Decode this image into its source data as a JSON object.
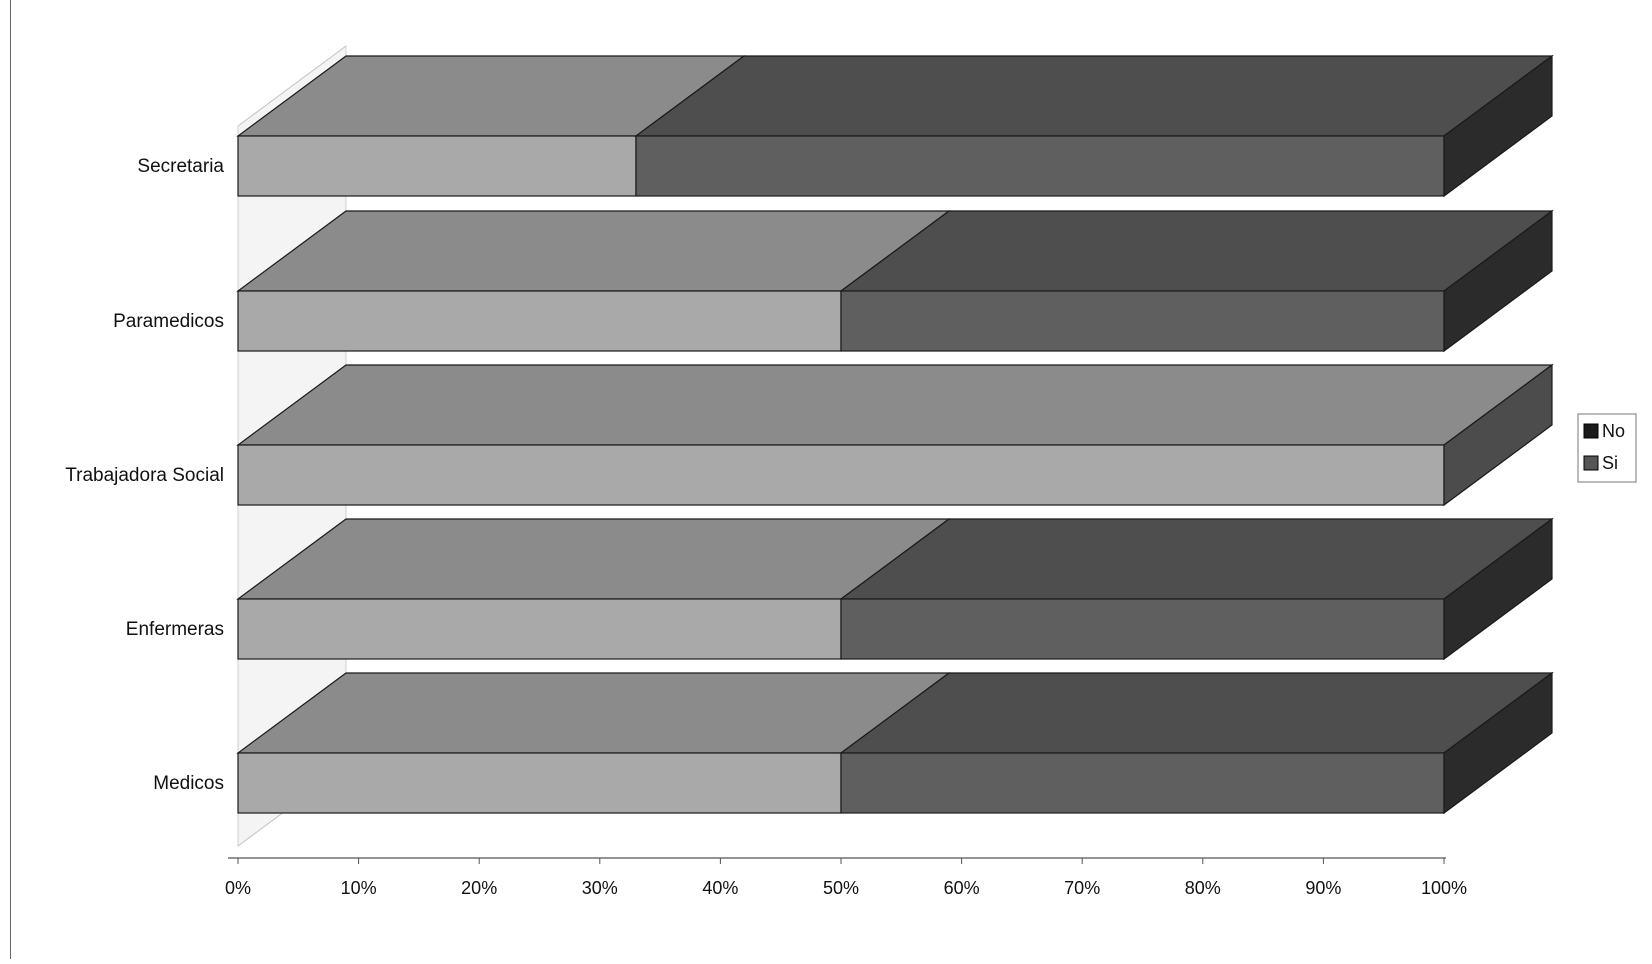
{
  "chart_data": {
    "type": "bar",
    "orientation": "horizontal",
    "stacking": "percent",
    "style": "3d",
    "categories": [
      "Medicos",
      "Enfermeras",
      "Trabajadora Social",
      "Paramedicos",
      "Secretaria"
    ],
    "series": [
      {
        "name": "Si",
        "values": [
          50,
          50,
          100,
          50,
          33
        ],
        "color": "#a9a9a9"
      },
      {
        "name": "No",
        "values": [
          50,
          50,
          0,
          50,
          67
        ],
        "color": "#5f5f5f"
      }
    ],
    "xlim": [
      0,
      100
    ],
    "x_ticks": [
      "0%",
      "10%",
      "20%",
      "30%",
      "40%",
      "50%",
      "60%",
      "70%",
      "80%",
      "90%",
      "100%"
    ],
    "title": "",
    "xlabel": "",
    "ylabel": "",
    "legend": {
      "position": "right",
      "entries": [
        "No",
        "Si"
      ]
    },
    "grid": false
  }
}
